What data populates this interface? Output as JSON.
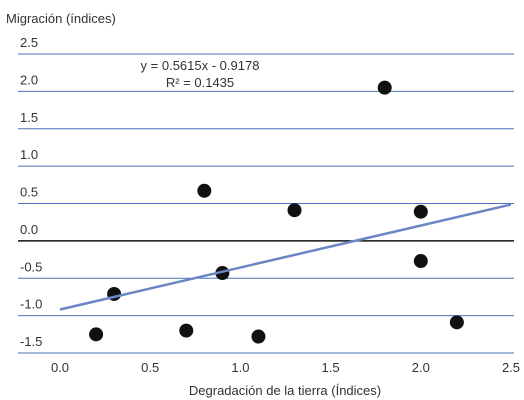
{
  "chart_data": {
    "type": "scatter",
    "y_axis_label": "Migración (índices)",
    "x_axis_label": "Degradación de la tierra (Índices)",
    "equation_label": "y = 0.5615x - 0.9178",
    "r_squared_label": "R² = 0.1435",
    "trendline": {
      "slope": 0.5615,
      "intercept": -0.9178,
      "color": "#6b86c4"
    },
    "series": [
      {
        "color": "#111111",
        "x": [
          0.2,
          0.3,
          0.7,
          0.8,
          0.9,
          1.1,
          1.3,
          1.8,
          2.0,
          2.0,
          2.2
        ],
        "values": [
          -1.25,
          -0.71,
          -1.2,
          0.67,
          -0.43,
          -1.28,
          0.41,
          2.05,
          0.39,
          -0.27,
          -1.09
        ]
      }
    ],
    "xlim": [
      0,
      2.5
    ],
    "xticks": [
      {
        "value": 0,
        "label": "0.0"
      },
      0.5,
      {
        "value": 1,
        "label": "1.0"
      },
      1.5,
      {
        "value": 2,
        "label": "2.0"
      },
      2.5
    ],
    "ylim": [
      -1.5,
      2.5
    ],
    "yticks": [
      2.5,
      {
        "value": 2,
        "label": "2.0"
      },
      1.5,
      {
        "value": 1,
        "label": "1.0"
      },
      0.5,
      {
        "value": 0,
        "label": "0.0"
      },
      -0.5,
      {
        "value": -1,
        "label": "-1.0"
      },
      -1.5
    ],
    "grid": true,
    "grid_color": "#4a72b8"
  }
}
